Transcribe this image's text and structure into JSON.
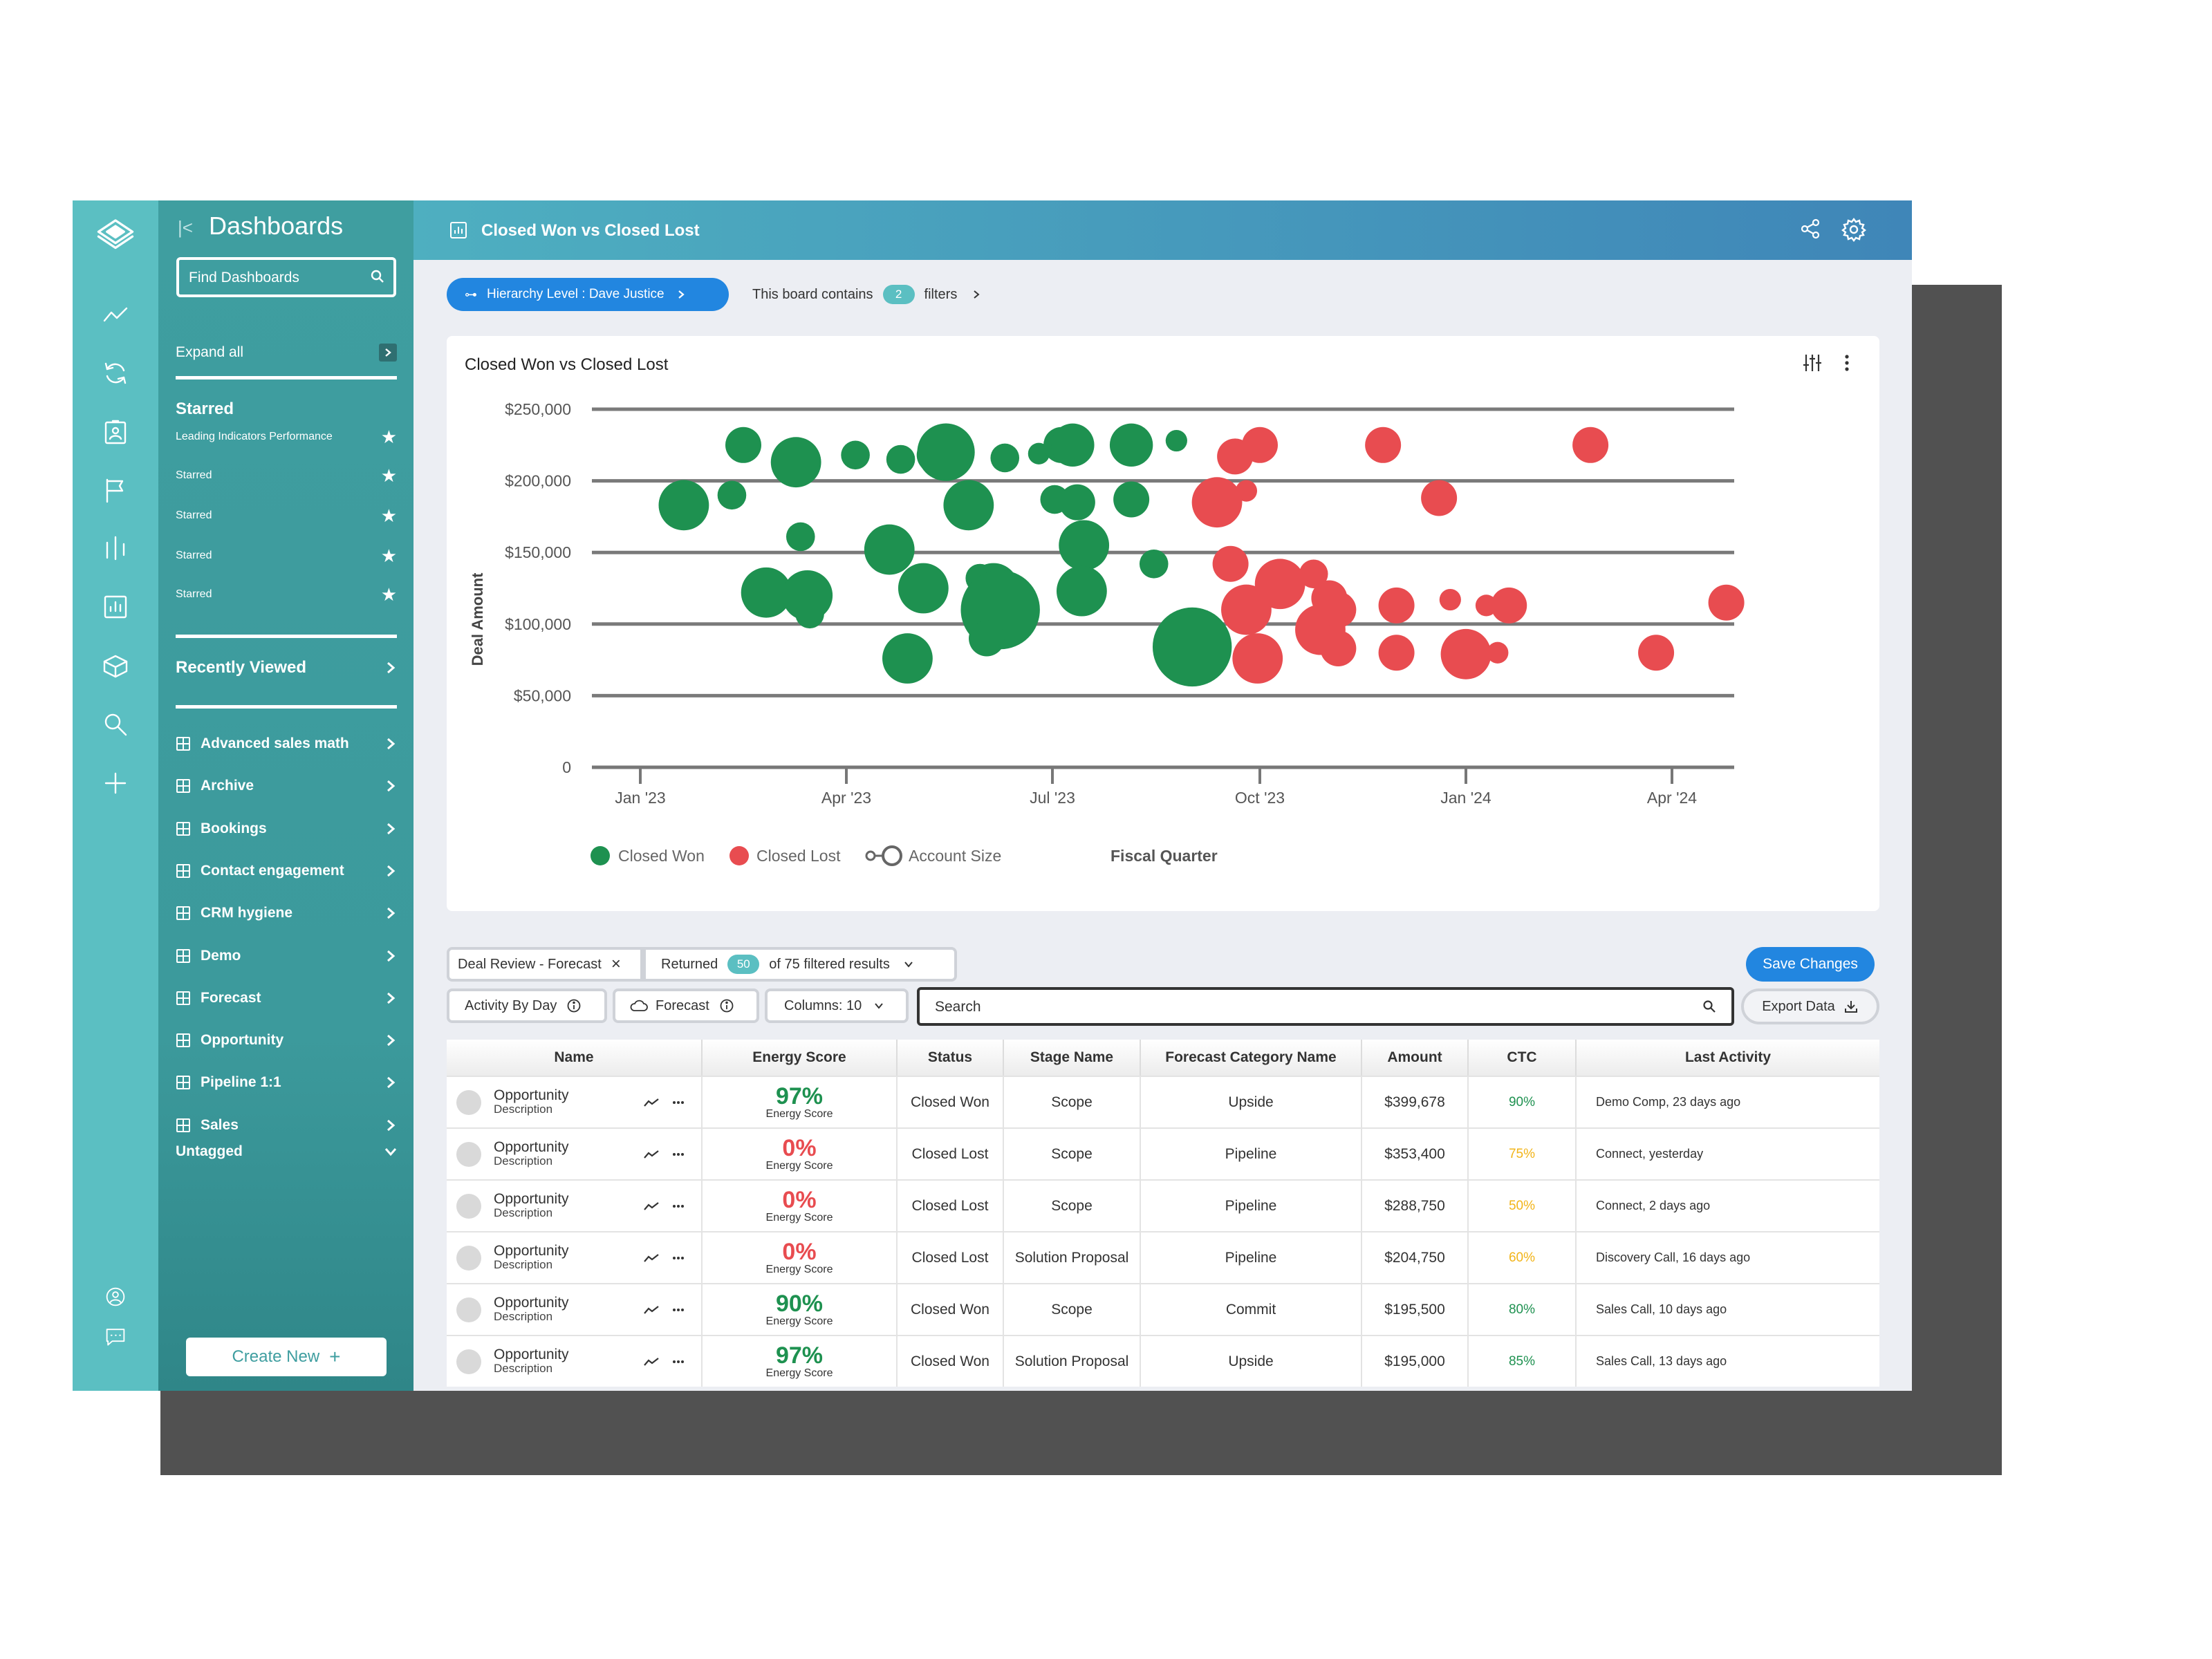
{
  "sidebar": {
    "title": "Dashboards",
    "search_placeholder": "Find Dashboards",
    "expand_all": "Expand all",
    "starred_heading": "Starred",
    "starred_items": [
      "Leading Indicators Performance",
      "Starred",
      "Starred",
      "Starred",
      "Starred"
    ],
    "recently_viewed": "Recently Viewed",
    "folders": [
      "Advanced sales math",
      "Archive",
      "Bookings",
      "Contact engagement",
      "CRM hygiene",
      "Demo",
      "Forecast",
      "Opportunity",
      "Pipeline 1:1",
      "Sales"
    ],
    "untagged": "Untagged",
    "create_new": "Create New"
  },
  "header": {
    "title": "Closed Won vs Closed Lost"
  },
  "filter_bar": {
    "hierarchy": "Hierarchy Level : Dave Justice",
    "board_contains": "This board contains",
    "filter_count": "2",
    "filters_word": "filters"
  },
  "chart_card": {
    "title": "Closed Won vs Closed Lost"
  },
  "chart_data": {
    "type": "scatter",
    "title": "Closed Won vs Closed Lost",
    "ylabel": "Deal Amount",
    "xlabel": "Fiscal Quarter",
    "ylim": [
      0,
      250000
    ],
    "y_ticks": [
      "0",
      "$50,000",
      "$100,000",
      "$150,000",
      "$200,000",
      "$250,000"
    ],
    "x_ticks": [
      "Jan '23",
      "Apr '23",
      "Jul '23",
      "Oct '23",
      "Jan '24",
      "Apr '24"
    ],
    "x_range": [
      "2023-01-01",
      "2024-04-30"
    ],
    "legend": [
      "Closed Won",
      "Closed Lost",
      "Account Size"
    ],
    "legend_placement": "bottom",
    "grid": true,
    "series": [
      {
        "name": "Closed Won",
        "color": "#1e9150",
        "points": [
          {
            "x": "2023-01-20",
            "y": 183000,
            "size": 7
          },
          {
            "x": "2023-02-15",
            "y": 225000,
            "size": 5
          },
          {
            "x": "2023-02-10",
            "y": 190000,
            "size": 4
          },
          {
            "x": "2023-02-25",
            "y": 122000,
            "size": 7
          },
          {
            "x": "2023-03-10",
            "y": 213000,
            "size": 7
          },
          {
            "x": "2023-03-12",
            "y": 161000,
            "size": 4
          },
          {
            "x": "2023-03-15",
            "y": 120000,
            "size": 7
          },
          {
            "x": "2023-03-16",
            "y": 107000,
            "size": 4
          },
          {
            "x": "2023-04-05",
            "y": 218000,
            "size": 4
          },
          {
            "x": "2023-04-20",
            "y": 152000,
            "size": 7
          },
          {
            "x": "2023-04-25",
            "y": 215000,
            "size": 4
          },
          {
            "x": "2023-05-10",
            "y": 218000,
            "size": 5
          },
          {
            "x": "2023-05-05",
            "y": 125000,
            "size": 7
          },
          {
            "x": "2023-04-28",
            "y": 76000,
            "size": 7
          },
          {
            "x": "2023-05-15",
            "y": 220000,
            "size": 8
          },
          {
            "x": "2023-05-25",
            "y": 183000,
            "size": 7
          },
          {
            "x": "2023-05-30",
            "y": 132000,
            "size": 4
          },
          {
            "x": "2023-06-05",
            "y": 125000,
            "size": 7
          },
          {
            "x": "2023-06-08",
            "y": 110000,
            "size": 11
          },
          {
            "x": "2023-06-02",
            "y": 90000,
            "size": 5
          },
          {
            "x": "2023-06-10",
            "y": 216000,
            "size": 4
          },
          {
            "x": "2023-06-25",
            "y": 219000,
            "size": 3
          },
          {
            "x": "2023-07-02",
            "y": 187000,
            "size": 4
          },
          {
            "x": "2023-07-05",
            "y": 225000,
            "size": 5
          },
          {
            "x": "2023-07-10",
            "y": 225000,
            "size": 6
          },
          {
            "x": "2023-07-12",
            "y": 185000,
            "size": 5
          },
          {
            "x": "2023-07-15",
            "y": 155000,
            "size": 7
          },
          {
            "x": "2023-07-14",
            "y": 123000,
            "size": 7
          },
          {
            "x": "2023-08-05",
            "y": 225000,
            "size": 6
          },
          {
            "x": "2023-08-05",
            "y": 187000,
            "size": 5
          },
          {
            "x": "2023-08-15",
            "y": 142000,
            "size": 4
          },
          {
            "x": "2023-08-25",
            "y": 228000,
            "size": 3
          },
          {
            "x": "2023-09-01",
            "y": 84000,
            "size": 11
          }
        ]
      },
      {
        "name": "Closed Lost",
        "color": "#e84c50",
        "points": [
          {
            "x": "2023-09-20",
            "y": 217000,
            "size": 5
          },
          {
            "x": "2023-10-01",
            "y": 225000,
            "size": 5
          },
          {
            "x": "2023-09-12",
            "y": 185000,
            "size": 7
          },
          {
            "x": "2023-09-25",
            "y": 193000,
            "size": 3
          },
          {
            "x": "2023-09-18",
            "y": 142000,
            "size": 5
          },
          {
            "x": "2023-09-25",
            "y": 110000,
            "size": 7
          },
          {
            "x": "2023-10-10",
            "y": 128000,
            "size": 7
          },
          {
            "x": "2023-09-30",
            "y": 76000,
            "size": 7
          },
          {
            "x": "2023-10-25",
            "y": 135000,
            "size": 4
          },
          {
            "x": "2023-11-01",
            "y": 118000,
            "size": 5
          },
          {
            "x": "2023-10-28",
            "y": 96000,
            "size": 7
          },
          {
            "x": "2023-11-05",
            "y": 83000,
            "size": 5
          },
          {
            "x": "2023-11-05",
            "y": 110000,
            "size": 5
          },
          {
            "x": "2023-11-25",
            "y": 225000,
            "size": 5
          },
          {
            "x": "2023-12-01",
            "y": 113000,
            "size": 5
          },
          {
            "x": "2023-12-01",
            "y": 80000,
            "size": 5
          },
          {
            "x": "2023-12-20",
            "y": 188000,
            "size": 5
          },
          {
            "x": "2024-01-01",
            "y": 79000,
            "size": 7
          },
          {
            "x": "2023-12-25",
            "y": 117000,
            "size": 3
          },
          {
            "x": "2024-01-10",
            "y": 113000,
            "size": 3
          },
          {
            "x": "2024-01-15",
            "y": 80000,
            "size": 3
          },
          {
            "x": "2024-01-20",
            "y": 113000,
            "size": 5
          },
          {
            "x": "2024-02-25",
            "y": 225000,
            "size": 5
          },
          {
            "x": "2024-03-25",
            "y": 80000,
            "size": 5
          },
          {
            "x": "2024-04-25",
            "y": 115000,
            "size": 5
          }
        ]
      }
    ]
  },
  "table_toolbar": {
    "view_name": "Deal Review - Forecast",
    "returned": "Returned",
    "returned_count": "50",
    "returned_suffix": "of 75 filtered results",
    "save_changes": "Save Changes",
    "activity_by_day": "Activity By Day",
    "forecast": "Forecast",
    "columns": "Columns: 10",
    "search_placeholder": "Search",
    "export": "Export Data"
  },
  "table": {
    "columns": [
      "Name",
      "Energy Score",
      "Status",
      "Stage Name",
      "Forecast Category Name",
      "Amount",
      "CTC",
      "Last Activity"
    ],
    "energy_caption": "Energy Score",
    "rows": [
      {
        "name": "Opportunity",
        "desc": "Description",
        "energy": "97%",
        "energy_color": "#1e9150",
        "status": "Closed Won",
        "stage": "Scope",
        "forecast": "Upside",
        "amount": "$399,678",
        "ctc": "90%",
        "ctc_color": "#1e9150",
        "last": "Demo Comp, 23 days ago"
      },
      {
        "name": "Opportunity",
        "desc": "Description",
        "energy": "0%",
        "energy_color": "#e84c50",
        "status": "Closed Lost",
        "stage": "Scope",
        "forecast": "Pipeline",
        "amount": "$353,400",
        "ctc": "75%",
        "ctc_color": "#f2b418",
        "last": "Connect, yesterday"
      },
      {
        "name": "Opportunity",
        "desc": "Description",
        "energy": "0%",
        "energy_color": "#e84c50",
        "status": "Closed Lost",
        "stage": "Scope",
        "forecast": "Pipeline",
        "amount": "$288,750",
        "ctc": "50%",
        "ctc_color": "#f2b418",
        "last": "Connect, 2 days ago"
      },
      {
        "name": "Opportunity",
        "desc": "Description",
        "energy": "0%",
        "energy_color": "#e84c50",
        "status": "Closed Lost",
        "stage": "Solution Proposal",
        "forecast": "Pipeline",
        "amount": "$204,750",
        "ctc": "60%",
        "ctc_color": "#f2b418",
        "last": "Discovery Call, 16 days ago"
      },
      {
        "name": "Opportunity",
        "desc": "Description",
        "energy": "90%",
        "energy_color": "#1e9150",
        "status": "Closed Won",
        "stage": "Scope",
        "forecast": "Commit",
        "amount": "$195,500",
        "ctc": "80%",
        "ctc_color": "#1e9150",
        "last": "Sales Call, 10 days ago"
      },
      {
        "name": "Opportunity",
        "desc": "Description",
        "energy": "97%",
        "energy_color": "#1e9150",
        "status": "Closed Won",
        "stage": "Solution Proposal",
        "forecast": "Upside",
        "amount": "$195,000",
        "ctc": "85%",
        "ctc_color": "#1e9150",
        "last": "Sales Call, 13 days ago"
      }
    ]
  },
  "icons": {
    "rail": [
      "logo-icon",
      "trend-icon",
      "sync-icon",
      "badge-icon",
      "flag-icon",
      "bars-icon",
      "report-icon",
      "box-icon",
      "search-icon",
      "plus-icon",
      "user-icon",
      "chat-icon"
    ]
  }
}
